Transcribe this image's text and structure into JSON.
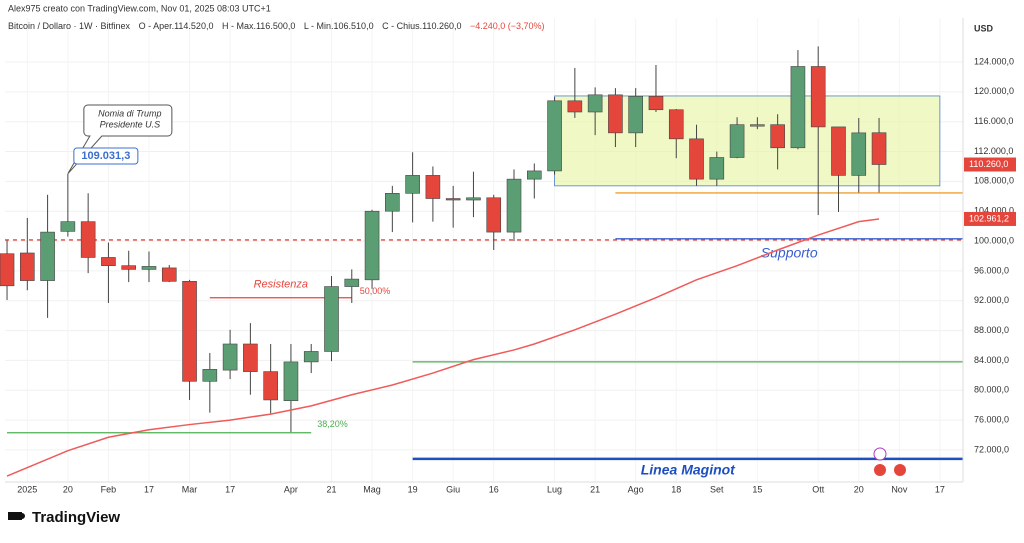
{
  "chart_data": {
    "type": "candlestick",
    "credit": "Alex975 creato con TradingView.com, Nov 01, 2025 08:03 UTC+1",
    "symbol": "Bitcoin / Dollaro · 1W · Bitfinex",
    "ohlc_text": [
      "O - Aper.114.520,0",
      "H - Max.116.500,0",
      "L - Min.106.510,0",
      "C - Chius.110.260,0"
    ],
    "change_text": "−4.240,0 (−3,70%)",
    "currency": "USD",
    "brand": "TradingView",
    "up_color": "#5c9e74",
    "down_color": "#e5463c",
    "candles": [
      [
        98300,
        100100,
        92100,
        94000
      ],
      [
        98400,
        103100,
        93400,
        94700
      ],
      [
        94700,
        106200,
        89700,
        101200
      ],
      [
        101300,
        109000,
        100600,
        102600
      ],
      [
        102600,
        106400,
        95700,
        97800
      ],
      [
        97800,
        99800,
        91700,
        96700
      ],
      [
        96700,
        98700,
        94500,
        96200
      ],
      [
        96200,
        98600,
        94500,
        96600
      ],
      [
        96400,
        96800,
        94500,
        94600
      ],
      [
        94600,
        94800,
        78700,
        81200
      ],
      [
        81200,
        85000,
        77000,
        82800
      ],
      [
        82700,
        88100,
        81500,
        86200
      ],
      [
        86200,
        89000,
        79400,
        82500
      ],
      [
        82500,
        86200,
        76900,
        78700
      ],
      [
        78600,
        86200,
        74400,
        83800
      ],
      [
        83800,
        86200,
        82300,
        85200
      ],
      [
        85200,
        95300,
        83900,
        93900
      ],
      [
        93900,
        96200,
        91700,
        94900
      ],
      [
        94800,
        104200,
        93600,
        104000
      ],
      [
        104000,
        107400,
        101200,
        106400
      ],
      [
        106400,
        111900,
        102500,
        108800
      ],
      [
        108800,
        110000,
        102600,
        105700
      ],
      [
        105700,
        107400,
        101800,
        105500
      ],
      [
        105500,
        109300,
        103200,
        105800
      ],
      [
        105800,
        106200,
        98800,
        101200
      ],
      [
        101200,
        109600,
        100000,
        108300
      ],
      [
        108300,
        110400,
        105700,
        109400
      ],
      [
        109400,
        119300,
        108900,
        118800
      ],
      [
        118800,
        123200,
        116500,
        117300
      ],
      [
        117300,
        120600,
        114200,
        119600
      ],
      [
        119600,
        120500,
        112600,
        114500
      ],
      [
        114500,
        120500,
        112600,
        119400
      ],
      [
        119400,
        123600,
        117300,
        117600
      ],
      [
        117600,
        117700,
        111100,
        113700
      ],
      [
        113700,
        115600,
        107400,
        108300
      ],
      [
        108300,
        112000,
        107400,
        111200
      ],
      [
        111200,
        116600,
        111100,
        115600
      ],
      [
        115400,
        116600,
        115000,
        115600
      ],
      [
        115600,
        117000,
        109600,
        112500
      ],
      [
        112500,
        125600,
        112300,
        123400
      ],
      [
        123400,
        126100,
        103500,
        115300
      ],
      [
        115300,
        115300,
        103900,
        108800
      ],
      [
        108800,
        116500,
        106500,
        114500
      ],
      [
        114520,
        116500,
        106510,
        110260
      ]
    ],
    "moving_average": {
      "color": "#f05a5a",
      "x": [
        0,
        3,
        5,
        7,
        9,
        11,
        13,
        15,
        17,
        19,
        21,
        23,
        25,
        26,
        28,
        30,
        32,
        34,
        36,
        38,
        40,
        42,
        43
      ],
      "values": [
        68500,
        71900,
        73700,
        74700,
        75400,
        76000,
        76800,
        77900,
        79400,
        80700,
        82300,
        84100,
        85400,
        86200,
        88100,
        90200,
        92400,
        94800,
        96700,
        98800,
        100800,
        102600,
        102961.2
      ]
    },
    "xlim": [
      -0.1,
      47.14
    ],
    "xticks": [
      {
        "value": 1,
        "label": "2025"
      },
      {
        "value": 3,
        "label": "20"
      },
      {
        "value": 5,
        "label": "Feb"
      },
      {
        "value": 7,
        "label": "17"
      },
      {
        "value": 9,
        "label": "Mar"
      },
      {
        "value": 11,
        "label": "17"
      },
      {
        "value": 14,
        "label": "Apr"
      },
      {
        "value": 16,
        "label": "21"
      },
      {
        "value": 18,
        "label": "Mag"
      },
      {
        "value": 20,
        "label": "19"
      },
      {
        "value": 22,
        "label": "Giu"
      },
      {
        "value": 24,
        "label": "16"
      },
      {
        "value": 27,
        "label": "Lug"
      },
      {
        "value": 29,
        "label": "21"
      },
      {
        "value": 31,
        "label": "Ago"
      },
      {
        "value": 33,
        "label": "18"
      },
      {
        "value": 35,
        "label": "Set"
      },
      {
        "value": 37,
        "label": "15"
      },
      {
        "value": 40,
        "label": "Ott"
      },
      {
        "value": 42,
        "label": "20"
      },
      {
        "value": 44,
        "label": "Nov"
      },
      {
        "value": 46,
        "label": "17"
      }
    ],
    "ylim": [
      67700,
      129900
    ],
    "yticks": [
      {
        "value": 72000,
        "label": "72.000,0"
      },
      {
        "value": 76000,
        "label": "76.000,0"
      },
      {
        "value": 80000,
        "label": "80.000,0"
      },
      {
        "value": 84000,
        "label": "84.000,0"
      },
      {
        "value": 88000,
        "label": "88.000,0"
      },
      {
        "value": 92000,
        "label": "92.000,0"
      },
      {
        "value": 96000,
        "label": "96.000,0"
      },
      {
        "value": 100000,
        "label": "100.000,0"
      },
      {
        "value": 104000,
        "label": "104.000,0"
      },
      {
        "value": 108000,
        "label": "108.000,0"
      },
      {
        "value": 112000,
        "label": "112.000,0"
      },
      {
        "value": 116000,
        "label": "116.000,0"
      },
      {
        "value": 120000,
        "label": "120.000,0"
      },
      {
        "value": 124000,
        "label": "124.000,0"
      }
    ],
    "price_labels": [
      {
        "value": 110260,
        "label": "110.260,0"
      },
      {
        "value": 102961.2,
        "label": "102.961,2"
      }
    ],
    "box": {
      "x": [
        27,
        46
      ],
      "y": [
        107400,
        119450
      ],
      "color": "#e6f5a0"
    },
    "hlines": [
      {
        "y": 100150,
        "x": [
          -0.1,
          47.14
        ],
        "color": "#e5463c",
        "dashed": true
      },
      {
        "y": 106450,
        "x": [
          30,
          47.14
        ],
        "color": "#f0a030"
      },
      {
        "y": 100300,
        "x": [
          30,
          47.14
        ],
        "color": "#3a5fcd",
        "label": "Supporto"
      },
      {
        "y": 83800,
        "x": [
          20,
          47.14
        ],
        "color": "#4caf50"
      },
      {
        "y": 70800,
        "x": [
          20,
          47.14
        ],
        "color": "#1e4fc0",
        "width": 2.5,
        "label": "Linea Maginot"
      },
      {
        "y": 92400,
        "x": [
          10,
          17
        ],
        "color": "#e5463c",
        "label": "Resistenza",
        "tag": "50,00%"
      },
      {
        "y": 74300,
        "x": [
          0,
          15
        ],
        "color": "#4caf50",
        "tag": "38,20%"
      }
    ],
    "callout": {
      "lines": [
        "Nomia di Trump",
        "Presidente U.S"
      ],
      "label": "109.031,3",
      "value": 109031.3,
      "x": 3
    }
  }
}
